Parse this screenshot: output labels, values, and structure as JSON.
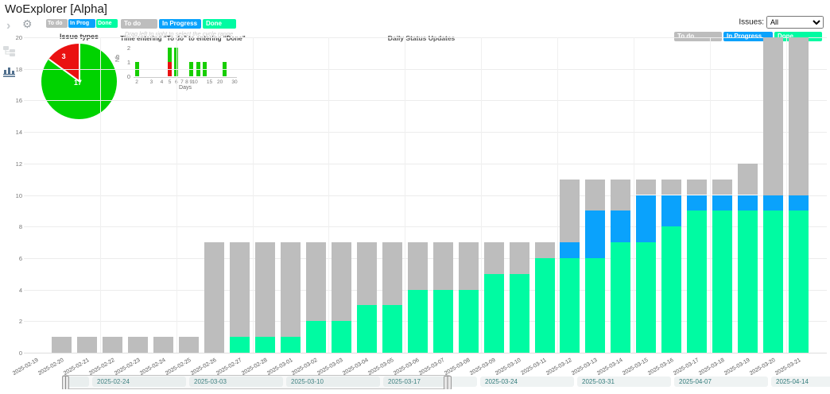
{
  "app": {
    "title": "WoExplorer [Alpha]"
  },
  "sidebar": {
    "icons": [
      "chevron-right",
      "gear",
      "tree-view",
      "bar-chart-view"
    ],
    "active_view": "bar-chart-view"
  },
  "controls": {
    "mini_legend": {
      "todo": "To do",
      "in_progress": "In Prog",
      "done": "Done"
    },
    "main_legend": {
      "todo": "To do",
      "in_progress": "In Progress",
      "done": "Done"
    },
    "right_legend": {
      "todo": "To do",
      "in_progress": "In Progress",
      "done": "Done"
    },
    "drag_hint": "Drag left to right to select the cycle range",
    "issues_label": "Issues:",
    "issues_value": "All"
  },
  "colors": {
    "todo": "#bdbdbd",
    "in_progress": "#0aa2fc",
    "done": "#00fba2",
    "pie_green": "#00d300",
    "pie_red": "#ea1111",
    "mini_green": "#17ce00",
    "mini_red": "#ea1111",
    "timeline_text": "#337b7b"
  },
  "chart_data": [
    {
      "type": "pie",
      "title": "Issue types",
      "slices": [
        {
          "label": "17",
          "value": 17,
          "color_key": "pie_green"
        },
        {
          "label": "3",
          "value": 3,
          "color_key": "pie_red"
        }
      ]
    },
    {
      "type": "bar",
      "title": "Time entering “To do” to entering “Done”",
      "xlabel": "Days",
      "ylabel": "Nb",
      "x_scale": "log",
      "x_ticks": [
        2,
        3,
        4,
        5,
        6,
        7,
        8,
        9,
        10,
        15,
        20,
        30
      ],
      "y_ticks": [
        0,
        1,
        2
      ],
      "ylim": [
        0,
        2
      ],
      "bars": [
        {
          "day": 2,
          "red": 0,
          "green": 1
        },
        {
          "day": 5,
          "red": 1,
          "green": 1
        },
        {
          "day": 6,
          "red": 0,
          "green": 2
        },
        {
          "day": 9,
          "red": 0,
          "green": 1
        },
        {
          "day": 11,
          "red": 0,
          "green": 1
        },
        {
          "day": 13,
          "red": 0,
          "green": 1
        },
        {
          "day": 23,
          "red": 0,
          "green": 1
        }
      ]
    },
    {
      "type": "stacked-bar",
      "title": "Daily Status Updates",
      "ylim": [
        0,
        20
      ],
      "y_ticks": [
        0,
        2,
        4,
        6,
        8,
        10,
        12,
        14,
        16,
        18,
        20
      ],
      "grid": true,
      "legend_position": "top-right",
      "categories": [
        "2025-02-19",
        "2025-02-20",
        "2025-02-21",
        "2025-02-22",
        "2025-02-23",
        "2025-02-24",
        "2025-02-25",
        "2025-02-26",
        "2025-02-27",
        "2025-02-28",
        "2025-03-01",
        "2025-03-02",
        "2025-03-03",
        "2025-03-04",
        "2025-03-05",
        "2025-03-06",
        "2025-03-07",
        "2025-03-08",
        "2025-03-09",
        "2025-03-10",
        "2025-03-11",
        "2025-03-12",
        "2025-03-13",
        "2025-03-14",
        "2025-03-15",
        "2025-03-16",
        "2025-03-17",
        "2025-03-18",
        "2025-03-19",
        "2025-03-20",
        "2025-03-21"
      ],
      "series": [
        {
          "name": "Done",
          "color_key": "done",
          "values": [
            0,
            0,
            0,
            0,
            0,
            0,
            0,
            0,
            1,
            1,
            1,
            2,
            2,
            3,
            3,
            4,
            4,
            4,
            5,
            5,
            6,
            6,
            6,
            7,
            7,
            8,
            9,
            9,
            9,
            9,
            9
          ]
        },
        {
          "name": "In Progress",
          "color_key": "in_progress",
          "values": [
            0,
            0,
            0,
            0,
            0,
            0,
            0,
            0,
            0,
            0,
            0,
            0,
            0,
            0,
            0,
            0,
            0,
            0,
            0,
            0,
            0,
            1,
            3,
            2,
            3,
            2,
            1,
            1,
            1,
            1,
            1
          ]
        },
        {
          "name": "To do",
          "color_key": "todo",
          "values": [
            0,
            1,
            1,
            1,
            1,
            1,
            1,
            7,
            6,
            6,
            6,
            5,
            5,
            4,
            4,
            3,
            3,
            3,
            2,
            2,
            1,
            4,
            2,
            2,
            1,
            1,
            1,
            1,
            2,
            10,
            10
          ]
        }
      ]
    }
  ],
  "timeline": {
    "cells": [
      "2025-02-24",
      "2025-03-03",
      "2025-03-10",
      "2025-03-17",
      "2025-03-24",
      "2025-03-31",
      "2025-04-07",
      "2025-04-14"
    ],
    "selected_cells": [
      "2025-02-24",
      "2025-03-03",
      "2025-03-10",
      "2025-03-17"
    ]
  }
}
